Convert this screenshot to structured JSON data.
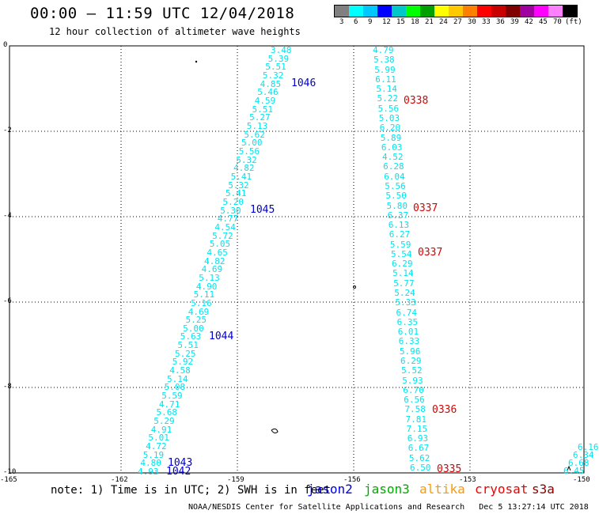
{
  "title": "00:00 – 11:59 UTC 12/04/2018",
  "subtitle": "12 hour collection of altimeter wave heights",
  "colorbar": {
    "colors": [
      "#808080",
      "#00ffff",
      "#00c8ff",
      "#0000ff",
      "#00c8c8",
      "#00ff00",
      "#00a000",
      "#ffff00",
      "#ffc800",
      "#ff8000",
      "#ff0000",
      "#c80000",
      "#800000",
      "#a000a0",
      "#ff00ff",
      "#ff80ff",
      "#000000"
    ],
    "labels": [
      "3",
      "6",
      "9",
      "12",
      "15",
      "18",
      "21",
      "24",
      "27",
      "30",
      "33",
      "36",
      "39",
      "42",
      "45",
      "70",
      "(ft)"
    ]
  },
  "axes": {
    "y_ticks": [
      "0",
      "-2",
      "-4",
      "-6",
      "-8",
      "-10"
    ],
    "x_ticks": [
      "-165",
      "-162",
      "-159",
      "-156",
      "-153",
      "-150"
    ]
  },
  "tracks": {
    "track1": [
      "3.48",
      "5.39",
      "5.51",
      "5.32",
      "4.85",
      "5.46",
      "4.59",
      "5.51",
      "5.27",
      "5.13",
      "5.62",
      "5.00",
      "5.56",
      "5.32",
      "4.82",
      "5.41",
      "5.32",
      "5.41",
      "5.20",
      "5.30",
      "4.77",
      "4.54",
      "5.72",
      "5.05",
      "4.65",
      "4.82",
      "4.69",
      "5.13",
      "4.90",
      "5.11",
      "5.16",
      "4.69",
      "5.25",
      "5.00",
      "5.63",
      "5.51",
      "5.25",
      "5.92",
      "4.58",
      "5.14",
      "5.08",
      "5.59",
      "4.71",
      "5.68",
      "5.29",
      "4.91",
      "5.01",
      "4.72",
      "5.19",
      "4.80",
      "4.93"
    ],
    "track2": [
      "4.79",
      "5.38",
      "5.99",
      "6.11",
      "5.14",
      "5.22",
      "5.56",
      "5.03",
      "6.20",
      "5.89",
      "6.03",
      "4.52",
      "6.28",
      "6.04",
      "5.56",
      "5.50",
      "5.80",
      "6.37",
      "6.13",
      "6.27",
      "5.59",
      "5.54",
      "6.29",
      "5.14",
      "5.77",
      "5.24",
      "5.33",
      "6.74",
      "6.35",
      "6.01",
      "6.33",
      "5.96",
      "6.29",
      "5.52",
      "5.93",
      "6.70",
      "6.56",
      "7.58",
      "7.81",
      "7.15",
      "6.93",
      "6.67",
      "5.62",
      "6.50"
    ],
    "track3": [
      "6.16",
      "6.34",
      "6.68",
      "6.45"
    ]
  },
  "passes": [
    {
      "label": "1046",
      "color": "#0000cc"
    },
    {
      "label": "1045",
      "color": "#0000cc"
    },
    {
      "label": "1044",
      "color": "#0000cc"
    },
    {
      "label": "1043",
      "color": "#0000cc"
    },
    {
      "label": "1042",
      "color": "#0000cc"
    },
    {
      "label": "0338",
      "color": "#dd0000"
    },
    {
      "label": "0337",
      "color": "#dd0000"
    },
    {
      "label": "0337",
      "color": "#dd0000"
    },
    {
      "label": "0336",
      "color": "#dd0000"
    },
    {
      "label": "0335",
      "color": "#dd0000"
    }
  ],
  "note": "note: 1) Time is in UTC; 2) SWH is in feet",
  "satellites": [
    {
      "name": "jason2",
      "color": "#0000dd"
    },
    {
      "name": "jason3",
      "color": "#00aa00"
    },
    {
      "name": "altika",
      "color": "#ff9900"
    },
    {
      "name": "cryosat",
      "color": "#ee0000"
    },
    {
      "name": "s3a",
      "color": "#880000"
    }
  ],
  "credit": "NOAA/NESDIS Center for Satellite Applications and Research",
  "timestamp": "Dec  5 13:27:14 UTC 2018"
}
